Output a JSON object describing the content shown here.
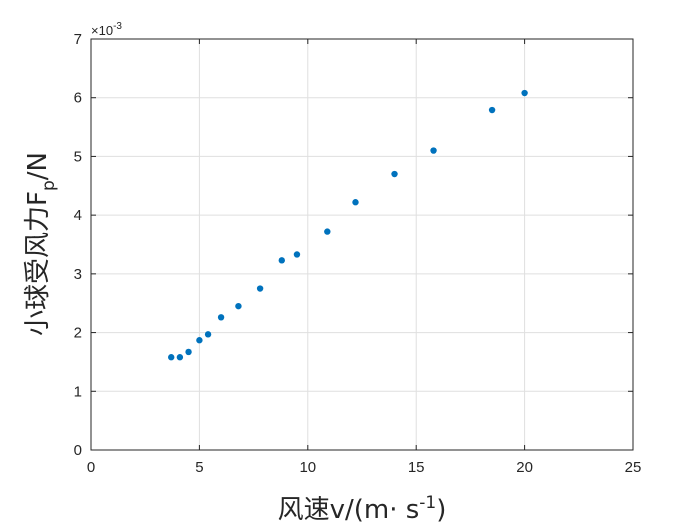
{
  "chart_data": {
    "type": "scatter",
    "x": [
      3.7,
      4.1,
      4.5,
      5.0,
      5.4,
      6.0,
      6.8,
      7.8,
      8.8,
      9.5,
      10.9,
      12.2,
      14.0,
      15.8,
      18.5,
      20.0
    ],
    "y": [
      1.58,
      1.58,
      1.67,
      1.87,
      1.97,
      2.26,
      2.45,
      2.75,
      3.23,
      3.33,
      3.72,
      4.22,
      4.7,
      5.1,
      5.79,
      6.08
    ],
    "xlim": [
      0,
      25
    ],
    "ylim": [
      0,
      7
    ],
    "x_ticks": [
      "0",
      "5",
      "10",
      "15",
      "20",
      "25"
    ],
    "y_ticks": [
      "0",
      "1",
      "2",
      "3",
      "4",
      "5",
      "6",
      "7"
    ],
    "y_exponent": {
      "base": "×10",
      "power": "-3"
    },
    "xlabel": {
      "main": "风速v/(m· s",
      "sup": "-1",
      "tail": ")"
    },
    "ylabel": {
      "main": "小球受风力F",
      "sub": "p",
      "tail": "/N"
    },
    "grid": true,
    "marker_color": "#0072BD",
    "axis_color": "#262626",
    "grid_color": "#dfdfdf"
  }
}
